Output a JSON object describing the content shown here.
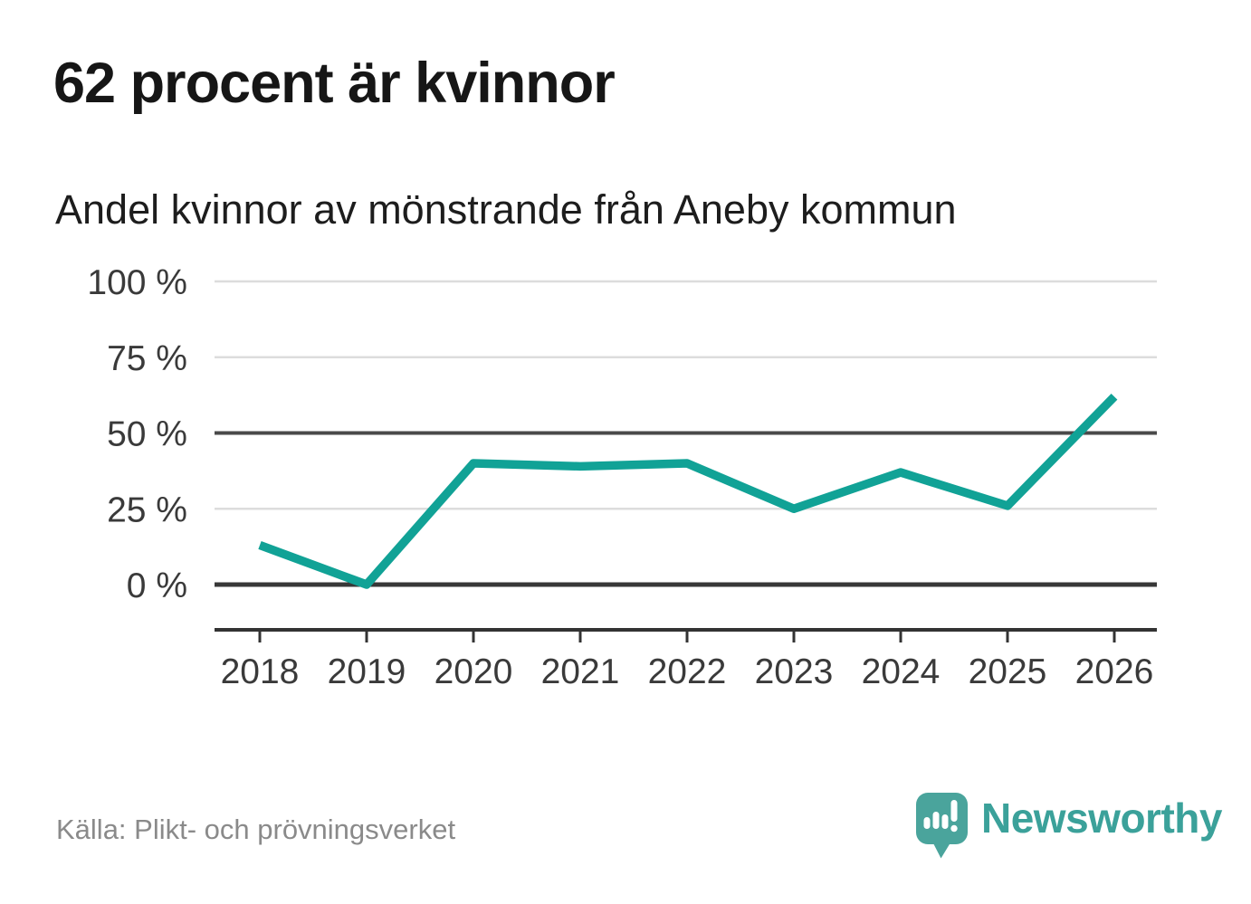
{
  "header": {
    "title": "62 procent är kvinnor",
    "subtitle": "Andel kvinnor av mönstrande från Aneby kommun"
  },
  "chart_data": {
    "type": "line",
    "title": "62 procent är kvinnor",
    "subtitle": "Andel kvinnor av mönstrande från Aneby kommun",
    "x": [
      2018,
      2019,
      2020,
      2021,
      2022,
      2023,
      2024,
      2025,
      2026
    ],
    "xtick_labels": [
      "2018",
      "2019",
      "2020",
      "2021",
      "2022",
      "2023",
      "2024",
      "2025",
      "2026"
    ],
    "values": [
      13,
      0,
      40,
      39,
      40,
      25,
      37,
      26,
      62
    ],
    "unit": "%",
    "ylim": [
      0,
      100
    ],
    "yticks": [
      0,
      25,
      50,
      75,
      100
    ],
    "ytick_labels": [
      "0 %",
      "25 %",
      "50 %",
      "75 %",
      "100 %"
    ],
    "grid": "horizontal",
    "emphasized_gridlines": [
      0,
      50
    ],
    "legend": "none"
  },
  "footer": {
    "source": "Källa: Plikt- och prövningsverket",
    "brand": "Newsworthy",
    "logo_icon": "speech-bubble-bar-chart-icon"
  },
  "colors": {
    "line": "#11a296",
    "brand_teal": "#4aa49c",
    "brand_text": "#3ba19a",
    "grid_light": "#dcdcdc",
    "grid_dark": "#4a4a4a",
    "baseline": "#383838",
    "axis_line": "#333333",
    "tick_text": "#3a3a3a",
    "title_text": "#161616",
    "source_text": "#8a8a8a",
    "background": "#ffffff"
  }
}
